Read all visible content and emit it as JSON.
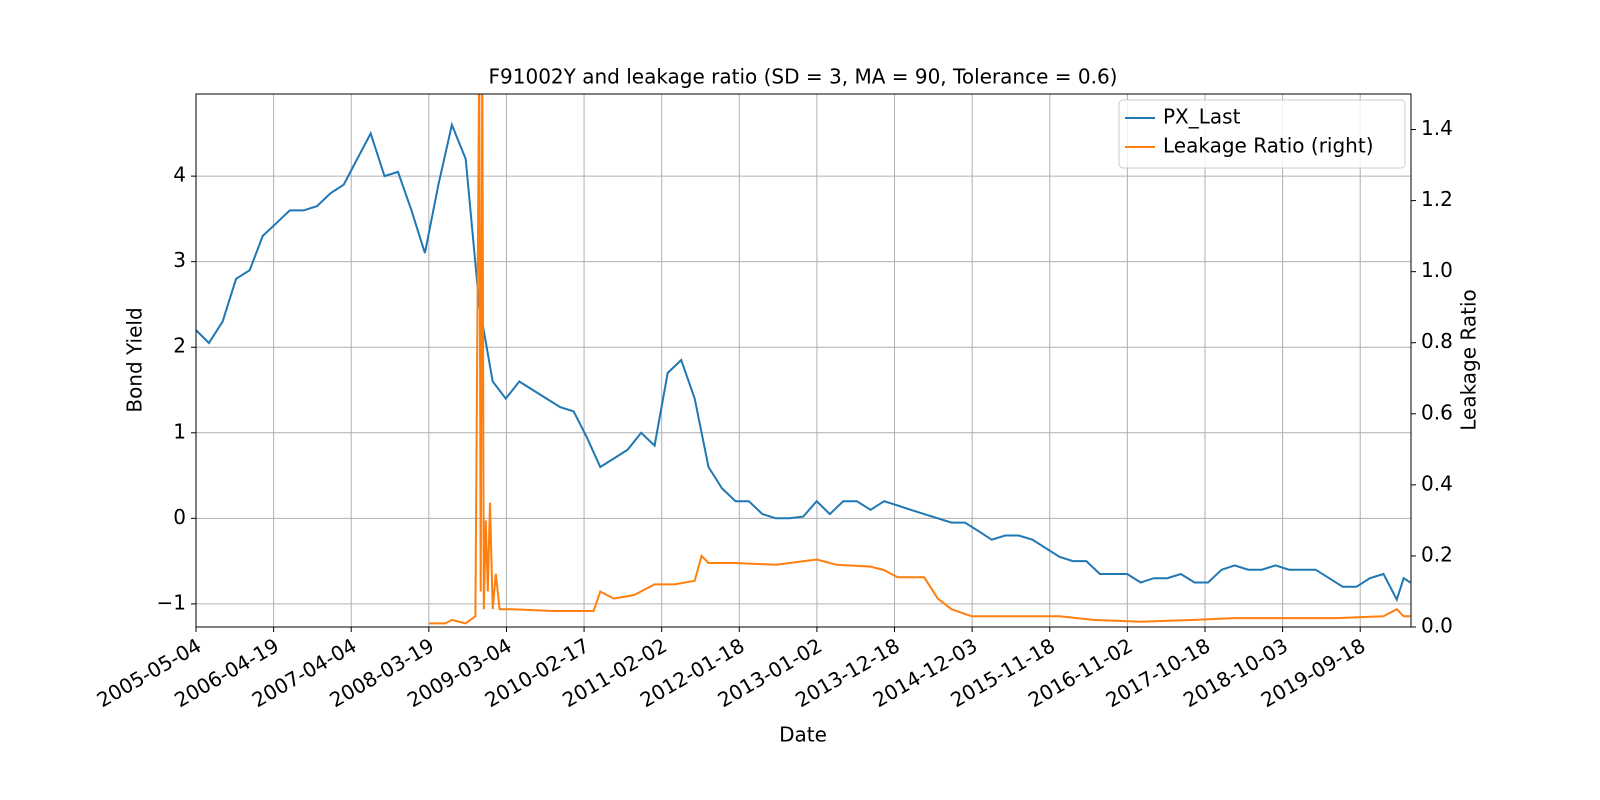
{
  "chart_data": {
    "type": "line",
    "title": "F91002Y and leakage ratio (SD = 3, MA = 90, Tolerance  = 0.6)",
    "x_label": "Date",
    "y_label": "Bond Yield",
    "y2_label": "Leakage Ratio",
    "xlim": [
      "2005-05-04",
      "2020-05-04"
    ],
    "xticks": [
      "2005-05-04",
      "2006-04-19",
      "2007-04-04",
      "2008-03-19",
      "2009-03-04",
      "2010-02-17",
      "2011-02-02",
      "2012-01-18",
      "2013-01-02",
      "2013-12-18",
      "2014-12-03",
      "2015-11-18",
      "2016-11-02",
      "2017-10-18",
      "2018-10-03",
      "2019-09-18"
    ],
    "ylim": [
      -1.27,
      4.96
    ],
    "yticks": [
      {
        "value": -1,
        "label": "−1"
      },
      0,
      1,
      2,
      3,
      4
    ],
    "y2lim": [
      0,
      1.5
    ],
    "y2ticks": [
      {
        "value": 0,
        "label": "0.0"
      },
      {
        "value": 0.2,
        "label": "0.2"
      },
      {
        "value": 0.4,
        "label": "0.4"
      },
      {
        "value": 0.6,
        "label": "0.6"
      },
      {
        "value": 0.8,
        "label": "0.8"
      },
      {
        "value": 1,
        "label": "1.0"
      },
      {
        "value": 1.2,
        "label": "1.2"
      },
      {
        "value": 1.4,
        "label": "1.4"
      }
    ],
    "grid": true,
    "legend": "upper right",
    "series": [
      {
        "name": "PX_Last",
        "color": "#1f77b4",
        "x": [
          "2005-05-04",
          "2005-07-01",
          "2005-09-01",
          "2005-11-01",
          "2006-01-01",
          "2006-03-01",
          "2006-05-01",
          "2006-07-01",
          "2006-09-01",
          "2006-11-01",
          "2007-01-01",
          "2007-03-01",
          "2007-05-01",
          "2007-07-01",
          "2007-09-01",
          "2007-11-01",
          "2008-01-01",
          "2008-03-01",
          "2008-05-01",
          "2008-07-01",
          "2008-09-01",
          "2008-11-01",
          "2009-01-01",
          "2009-03-01",
          "2009-05-01",
          "2009-07-01",
          "2009-09-01",
          "2009-11-01",
          "2010-01-01",
          "2010-03-01",
          "2010-05-01",
          "2010-07-01",
          "2010-09-01",
          "2010-11-01",
          "2011-01-01",
          "2011-03-01",
          "2011-05-01",
          "2011-07-01",
          "2011-09-01",
          "2011-11-01",
          "2012-01-01",
          "2012-03-01",
          "2012-05-01",
          "2012-07-01",
          "2012-09-01",
          "2012-11-01",
          "2013-01-01",
          "2013-03-01",
          "2013-05-01",
          "2013-07-01",
          "2013-09-01",
          "2013-11-01",
          "2014-01-01",
          "2014-03-01",
          "2014-05-01",
          "2014-07-01",
          "2014-09-01",
          "2014-11-01",
          "2015-01-01",
          "2015-03-01",
          "2015-05-01",
          "2015-07-01",
          "2015-09-01",
          "2015-11-01",
          "2016-01-01",
          "2016-03-01",
          "2016-05-01",
          "2016-07-01",
          "2016-09-01",
          "2016-11-01",
          "2017-01-01",
          "2017-03-01",
          "2017-05-01",
          "2017-07-01",
          "2017-09-01",
          "2017-11-01",
          "2018-01-01",
          "2018-03-01",
          "2018-05-01",
          "2018-07-01",
          "2018-09-01",
          "2018-11-01",
          "2019-01-01",
          "2019-03-01",
          "2019-05-01",
          "2019-07-01",
          "2019-09-01",
          "2019-11-01",
          "2020-01-01",
          "2020-03-01",
          "2020-04-01",
          "2020-05-01"
        ],
        "values": [
          2.2,
          2.05,
          2.3,
          2.8,
          2.9,
          3.3,
          3.45,
          3.6,
          3.6,
          3.65,
          3.8,
          3.9,
          4.2,
          4.5,
          4.0,
          4.05,
          3.6,
          3.1,
          3.9,
          4.6,
          4.2,
          2.5,
          1.6,
          1.4,
          1.6,
          1.5,
          1.4,
          1.3,
          1.25,
          0.95,
          0.6,
          0.7,
          0.8,
          1.0,
          0.85,
          1.7,
          1.85,
          1.4,
          0.6,
          0.35,
          0.2,
          0.2,
          0.05,
          0.0,
          0.0,
          0.02,
          0.2,
          0.05,
          0.2,
          0.2,
          0.1,
          0.2,
          0.15,
          0.1,
          0.05,
          0.0,
          -0.05,
          -0.05,
          -0.15,
          -0.25,
          -0.2,
          -0.2,
          -0.25,
          -0.35,
          -0.45,
          -0.5,
          -0.5,
          -0.65,
          -0.65,
          -0.65,
          -0.75,
          -0.7,
          -0.7,
          -0.65,
          -0.75,
          -0.75,
          -0.6,
          -0.55,
          -0.6,
          -0.6,
          -0.55,
          -0.6,
          -0.6,
          -0.6,
          -0.7,
          -0.8,
          -0.8,
          -0.7,
          -0.65,
          -0.95,
          -0.7,
          -0.75
        ]
      },
      {
        "name": "Leakage Ratio (right)",
        "color": "#ff7f0e",
        "axis": "y2",
        "x": [
          "2008-03-19",
          "2008-06-01",
          "2008-07-01",
          "2008-09-01",
          "2008-10-15",
          "2008-11-01",
          "2008-11-08",
          "2008-11-15",
          "2008-11-22",
          "2008-12-01",
          "2008-12-10",
          "2008-12-20",
          "2009-01-01",
          "2009-01-15",
          "2009-02-01",
          "2009-04-01",
          "2009-10-01",
          "2010-04-01",
          "2010-05-01",
          "2010-07-01",
          "2010-10-01",
          "2011-01-01",
          "2011-04-01",
          "2011-07-01",
          "2011-08-01",
          "2011-09-01",
          "2012-01-01",
          "2012-07-01",
          "2013-01-01",
          "2013-04-01",
          "2013-09-01",
          "2013-11-01",
          "2014-01-01",
          "2014-05-01",
          "2014-07-01",
          "2014-09-01",
          "2014-12-01",
          "2015-06-01",
          "2016-01-01",
          "2016-06-01",
          "2017-01-01",
          "2017-09-01",
          "2018-03-01",
          "2018-10-01",
          "2019-06-01",
          "2020-01-01",
          "2020-03-01",
          "2020-04-01",
          "2020-05-01"
        ],
        "values": [
          0.01,
          0.01,
          0.02,
          0.01,
          0.03,
          1.6,
          0.1,
          1.6,
          0.05,
          0.3,
          0.1,
          0.35,
          0.05,
          0.15,
          0.05,
          0.05,
          0.045,
          0.045,
          0.1,
          0.08,
          0.09,
          0.12,
          0.12,
          0.13,
          0.2,
          0.18,
          0.18,
          0.175,
          0.19,
          0.175,
          0.17,
          0.16,
          0.14,
          0.14,
          0.08,
          0.05,
          0.03,
          0.03,
          0.03,
          0.02,
          0.015,
          0.02,
          0.025,
          0.025,
          0.025,
          0.03,
          0.05,
          0.03,
          0.03
        ]
      }
    ]
  }
}
